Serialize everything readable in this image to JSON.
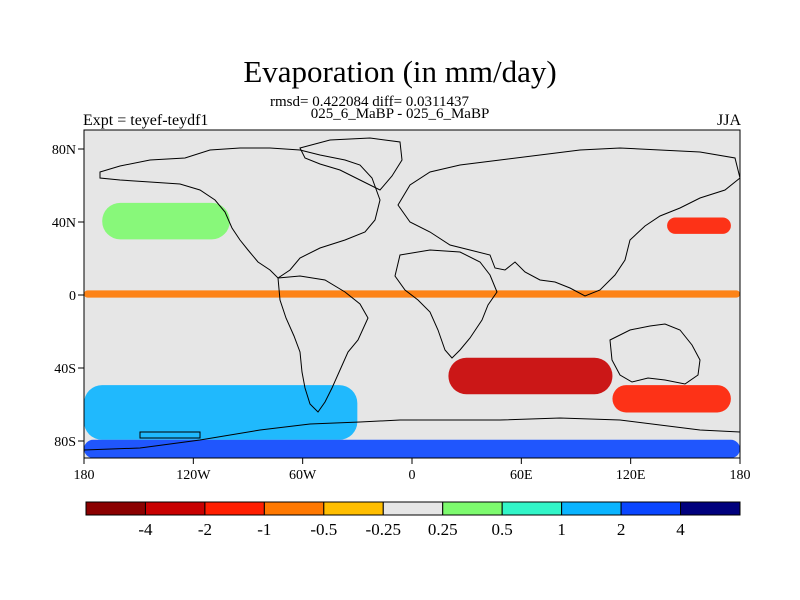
{
  "plot": {
    "title": "Evaporation (in mm/day)",
    "stats": "rmsd= 0.422084 diff= 0.0311437",
    "subtitle": "025_6_MaBP - 025_6_MaBP",
    "left_label": "Expt = teyef-teydf1",
    "right_label": "JJA"
  },
  "axes": {
    "x_ticks": [
      "180",
      "120W",
      "60W",
      "0",
      "60E",
      "120E",
      "180"
    ],
    "y_ticks": [
      "80N",
      "40N",
      "0",
      "40S",
      "80S"
    ]
  },
  "colorbar": {
    "labels": [
      "-4",
      "-2",
      "-1",
      "-0.5",
      "-0.25",
      "0.25",
      "0.5",
      "1",
      "2",
      "4"
    ],
    "colors": [
      "#8b0000",
      "#c80000",
      "#ff1e00",
      "#ff7800",
      "#ffbe00",
      "#e6e6e6",
      "#7dfa6e",
      "#32f5c8",
      "#0ab4ff",
      "#0a46ff",
      "#00007d"
    ]
  },
  "chart_data": {
    "type": "heatmap",
    "title": "Evaporation (in mm/day)",
    "projection": "cylindrical equidistant",
    "lon_range": [
      -180,
      180
    ],
    "lat_range": [
      -90,
      90
    ],
    "levels": [
      -4,
      -2,
      -1,
      -0.5,
      -0.25,
      0.25,
      0.5,
      1,
      2,
      4
    ],
    "features": [
      {
        "name": "south-atlantic-indian-negative",
        "lon": [
          20,
          110
        ],
        "lat": [
          -55,
          -35
        ],
        "value": -3
      },
      {
        "name": "australia-south-negative",
        "lon": [
          110,
          175
        ],
        "lat": [
          -65,
          -50
        ],
        "value": -1.5
      },
      {
        "name": "southern-ocean-positive",
        "lon": [
          -180,
          -30
        ],
        "lat": [
          -80,
          -50
        ],
        "value": 1
      },
      {
        "name": "antarctic-coast-positive",
        "lon": [
          -180,
          180
        ],
        "lat": [
          -90,
          -80
        ],
        "value": 2
      },
      {
        "name": "equatorial-negative",
        "lon": [
          -180,
          180
        ],
        "lat": [
          -2,
          2
        ],
        "value": -0.75
      },
      {
        "name": "north-pacific-positive",
        "lon": [
          -170,
          -100
        ],
        "lat": [
          30,
          50
        ],
        "value": 0.4
      },
      {
        "name": "kuroshio-negative",
        "lon": [
          140,
          175
        ],
        "lat": [
          33,
          42
        ],
        "value": -1.2
      }
    ]
  }
}
